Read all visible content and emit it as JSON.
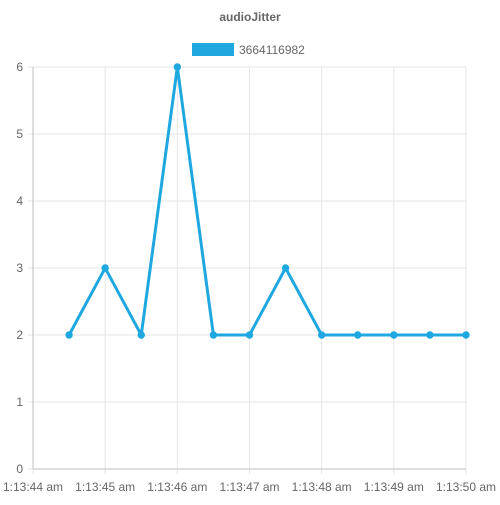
{
  "chart_data": {
    "type": "line",
    "title": "audioJitter",
    "xlabel": "",
    "ylabel": "",
    "x_ticks": [
      "1:13:44 am",
      "1:13:45 am",
      "1:13:46 am",
      "1:13:47 am",
      "1:13:48 am",
      "1:13:49 am",
      "1:13:50 am"
    ],
    "x": [
      "1:13:44.5",
      "1:13:45",
      "1:13:45.5",
      "1:13:46",
      "1:13:46.5",
      "1:13:47",
      "1:13:47.5",
      "1:13:48",
      "1:13:48.5",
      "1:13:49",
      "1:13:49.5",
      "1:13:50"
    ],
    "x_seconds": [
      44.5,
      45,
      45.5,
      46,
      46.5,
      47,
      47.5,
      48,
      48.5,
      49,
      49.5,
      50
    ],
    "xlim_seconds": [
      44,
      50
    ],
    "series": [
      {
        "name": "3664116982",
        "color": "#1fa8e0",
        "values": [
          2,
          3,
          2,
          6,
          2,
          2,
          3,
          2,
          2,
          2,
          2,
          2
        ]
      }
    ],
    "ylim": [
      0,
      6
    ],
    "y_ticks": [
      "0",
      "1",
      "2",
      "3",
      "4",
      "5",
      "6"
    ],
    "grid": true,
    "legend_position": "top-center"
  },
  "colors": {
    "series": "#1fa8e0",
    "grid": "#e6e6e6",
    "axis": "#bdbdbd",
    "text": "#666666",
    "title": "#666666"
  }
}
